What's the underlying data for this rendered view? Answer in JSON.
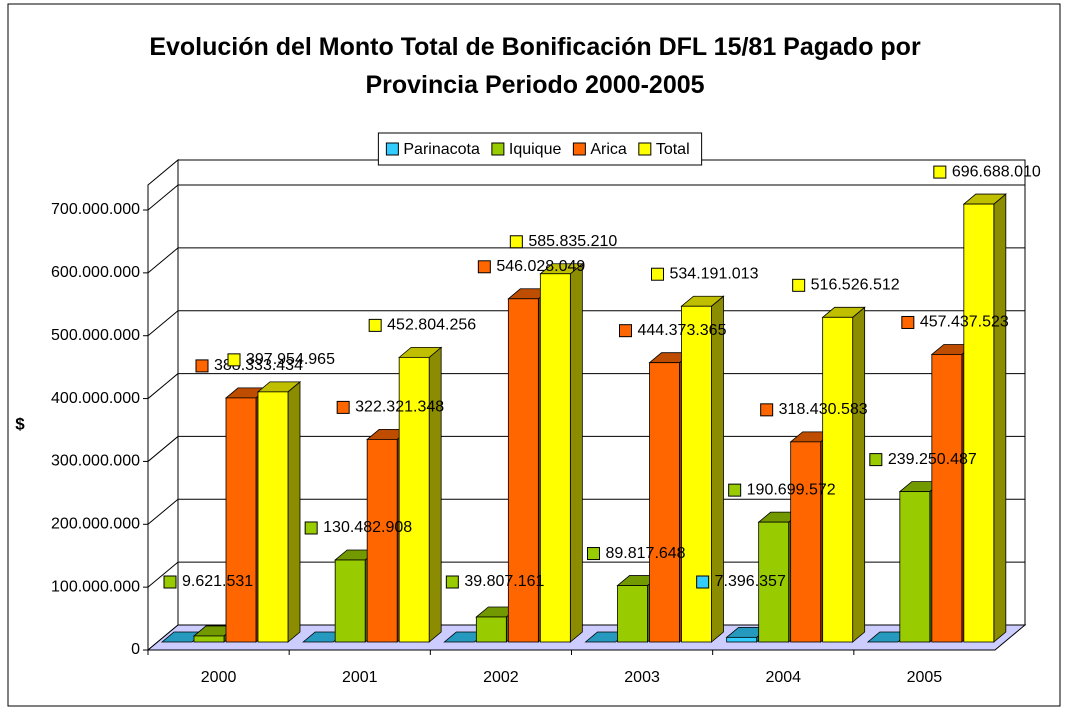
{
  "chart_data": {
    "type": "bar3d",
    "title": "Evolución del Monto Total de Bonificación DFL 15/81 Pagado por Provincia Periodo 2000-2005",
    "y_label": "$",
    "categories": [
      "2000",
      "2001",
      "2002",
      "2003",
      "2004",
      "2005"
    ],
    "series": [
      {
        "name": "Parinacota",
        "color": "#33ccff",
        "values": [
          0,
          0,
          0,
          0,
          7396357,
          0
        ],
        "value_labels": [
          null,
          null,
          null,
          null,
          "7.396.357",
          null
        ]
      },
      {
        "name": "Iquique",
        "color": "#99cc00",
        "values": [
          9621531,
          130482908,
          39807161,
          89817648,
          190699572,
          239250487
        ],
        "value_labels": [
          "9.621.531",
          "130.482.908",
          "39.807.161",
          "89.817.648",
          "190.699.572",
          "239.250.487"
        ]
      },
      {
        "name": "Arica",
        "color": "#ff6600",
        "values": [
          388333434,
          322321348,
          546028049,
          444373365,
          318430583,
          457437523
        ],
        "value_labels": [
          "388.333.434",
          "322.321.348",
          "546.028.049",
          "444.373.365",
          "318.430.583",
          "457.437.523"
        ]
      },
      {
        "name": "Total",
        "color": "#ffff00",
        "values": [
          397954965,
          452804256,
          585835210,
          534191013,
          516526512,
          696688010
        ],
        "value_labels": [
          "397.954.965",
          "452.804.256",
          "585.835.210",
          "534.191.013",
          "516.526.512",
          "696.688.010"
        ]
      }
    ],
    "ylim": [
      0,
      700000000
    ],
    "yticks": [
      0,
      {
        "value": 100000000,
        "label": "100.000.000"
      },
      {
        "value": 200000000,
        "label": "200.000.000"
      },
      {
        "value": 300000000,
        "label": "300.000.000"
      },
      {
        "value": 400000000,
        "label": "400.000.000"
      },
      {
        "value": 500000000,
        "label": "500.000.000"
      },
      {
        "value": 600000000,
        "label": "600.000.000"
      },
      {
        "value": 700000000,
        "label": "700.000.000"
      }
    ],
    "grid": true,
    "legend": "top"
  }
}
